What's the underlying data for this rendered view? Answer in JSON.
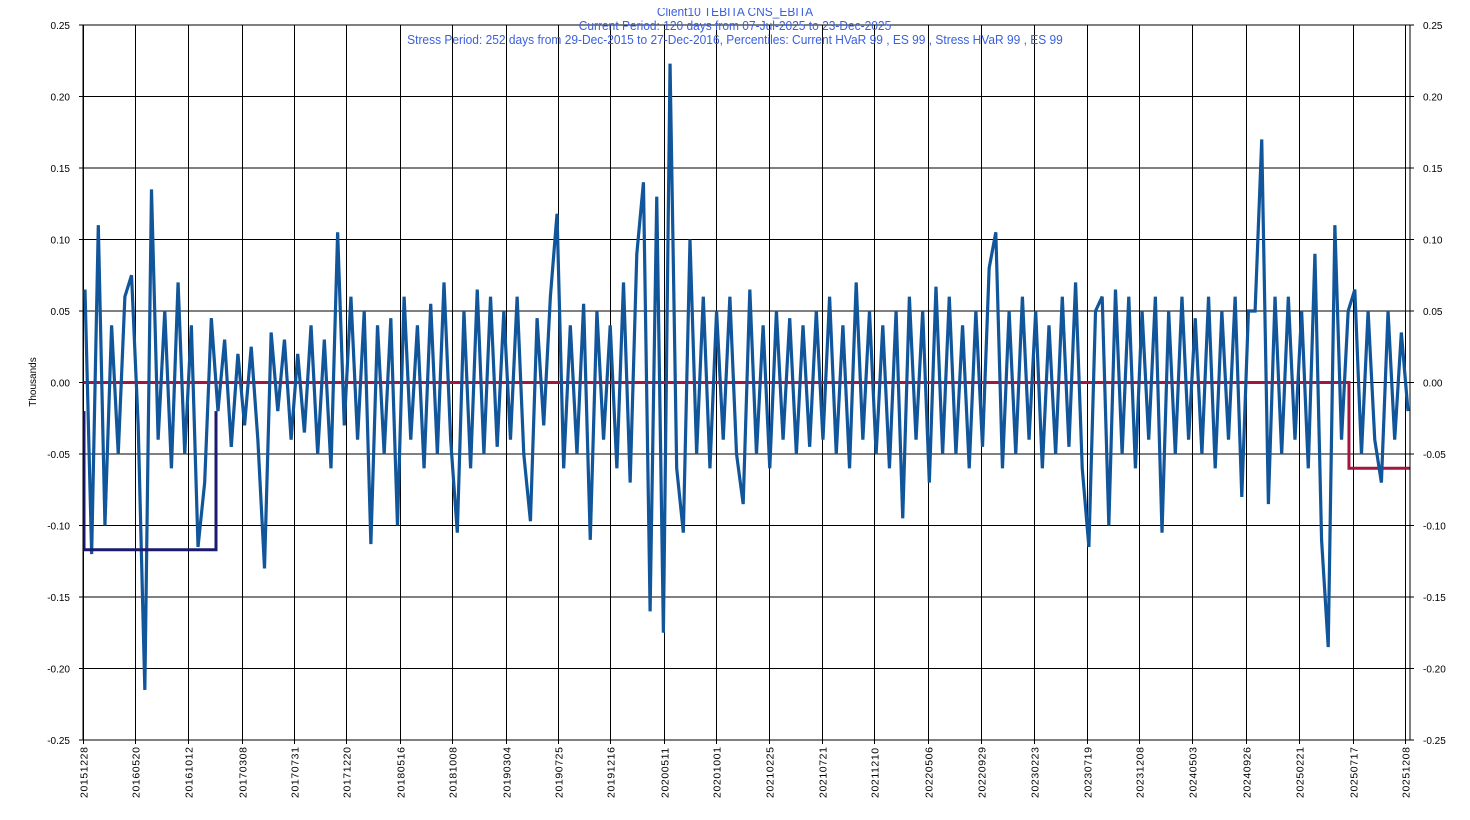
{
  "chart_data": {
    "type": "line",
    "title": "Client10 TEBITA CNS_EBITA",
    "subtitle_lines": [
      "Current Period: 120 days from 07-Jul-2025 to 23-Dec-2025",
      "Stress Period: 252 days from 29-Dec-2015 to 27-Dec-2016, Percentiles: Current HVaR 99 , ES 99 , Stress HVaR 99 , ES 99"
    ],
    "ylabel": "Thousands",
    "xlabel": "",
    "ylim": [
      -0.25,
      0.25
    ],
    "y_ticks": [
      "0.25",
      "0.20",
      "0.15",
      "0.10",
      "0.05",
      "0.00",
      "-0.05",
      "-0.10",
      "-0.15",
      "-0.20",
      "-0.25"
    ],
    "x_ticks": [
      "20151228",
      "20160520",
      "20161012",
      "20170308",
      "20170731",
      "20171220",
      "20180516",
      "20181008",
      "20190304",
      "20190725",
      "20191216",
      "20200511",
      "20201001",
      "20210225",
      "20210721",
      "20211210",
      "20220506",
      "20220929",
      "20230223",
      "20230719",
      "20231208",
      "20240503",
      "20240926",
      "20250221",
      "20250717",
      "20251208"
    ],
    "grid": true,
    "colors": {
      "pnl": "#11569b",
      "stress": "#1b1a6e",
      "current": "#a3163f",
      "title": "#3a5fe0"
    },
    "series": [
      {
        "key": "pnl",
        "values": [
          0.065,
          -0.12,
          0.11,
          -0.1,
          0.04,
          -0.05,
          0.06,
          0.075,
          -0.03,
          -0.215,
          0.135,
          -0.04,
          0.05,
          -0.06,
          0.07,
          -0.05,
          0.04,
          -0.115,
          -0.07,
          0.045,
          -0.02,
          0.03,
          -0.045,
          0.02,
          -0.03,
          0.025,
          -0.04,
          -0.13,
          0.035,
          -0.02,
          0.03,
          -0.04,
          0.02,
          -0.035,
          0.04,
          -0.05,
          0.03,
          -0.06,
          0.105,
          -0.03,
          0.06,
          -0.04,
          0.05,
          -0.113,
          0.04,
          -0.05,
          0.045,
          -0.1,
          0.06,
          -0.04,
          0.04,
          -0.06,
          0.055,
          -0.05,
          0.07,
          -0.04,
          -0.105,
          0.05,
          -0.06,
          0.065,
          -0.05,
          0.06,
          -0.045,
          0.05,
          -0.04,
          0.06,
          -0.05,
          -0.097,
          0.045,
          -0.03,
          0.06,
          0.118,
          -0.06,
          0.04,
          -0.05,
          0.055,
          -0.11,
          0.05,
          -0.04,
          0.04,
          -0.06,
          0.07,
          -0.07,
          0.09,
          0.14,
          -0.16,
          0.13,
          -0.175,
          0.223,
          -0.06,
          -0.105,
          0.1,
          -0.05,
          0.06,
          -0.06,
          0.05,
          -0.04,
          0.06,
          -0.05,
          -0.085,
          0.065,
          -0.05,
          0.04,
          -0.06,
          0.05,
          -0.04,
          0.045,
          -0.05,
          0.04,
          -0.045,
          0.05,
          -0.04,
          0.06,
          -0.05,
          0.04,
          -0.06,
          0.07,
          -0.04,
          0.05,
          -0.05,
          0.04,
          -0.06,
          0.05,
          -0.095,
          0.06,
          -0.04,
          0.05,
          -0.07,
          0.067,
          -0.05,
          0.06,
          -0.05,
          0.04,
          -0.06,
          0.05,
          -0.045,
          0.08,
          0.105,
          -0.06,
          0.05,
          -0.05,
          0.06,
          -0.04,
          0.05,
          -0.06,
          0.04,
          -0.05,
          0.06,
          -0.045,
          0.07,
          -0.06,
          -0.115,
          0.05,
          0.06,
          -0.1,
          0.065,
          -0.05,
          0.06,
          -0.06,
          0.05,
          -0.04,
          0.06,
          -0.105,
          0.05,
          -0.05,
          0.06,
          -0.04,
          0.045,
          -0.05,
          0.06,
          -0.06,
          0.05,
          -0.04,
          0.06,
          -0.08,
          0.05,
          0.05,
          0.17,
          -0.085,
          0.06,
          -0.05,
          0.06,
          -0.04,
          0.05,
          -0.06,
          0.09,
          -0.11,
          -0.185,
          0.11,
          -0.04,
          0.05,
          0.065,
          -0.05,
          0.05,
          -0.04,
          -0.07,
          0.05,
          -0.04,
          0.035,
          -0.02
        ]
      },
      {
        "key": "stress",
        "from": "20151228",
        "to": "20161227",
        "level": -0.117
      },
      {
        "key": "current",
        "levels": [
          {
            "from": "20151228",
            "to": "20250707",
            "level": 0.0
          },
          {
            "from": "20250707",
            "to": "20251223",
            "level": -0.06
          }
        ]
      }
    ]
  }
}
